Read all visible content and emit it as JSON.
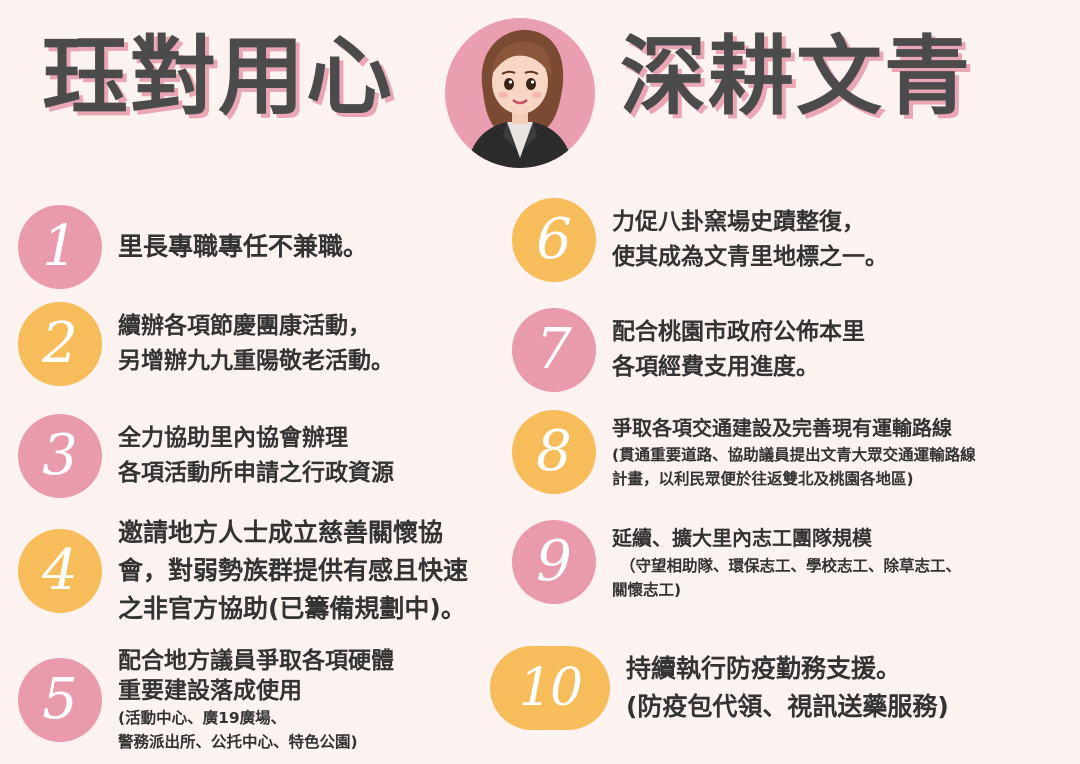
{
  "title": {
    "left": "珏對用心",
    "right": "深耕文青"
  },
  "colors": {
    "background": "#fcf2ef",
    "pink": "#e99aab",
    "orange": "#f8bd5b",
    "title": "#4b4b4b",
    "title_shadow": "#eaa6b4"
  },
  "items": [
    {
      "number": "1",
      "color": "pink",
      "lines": [
        "里長專職專任不兼職。"
      ]
    },
    {
      "number": "2",
      "color": "orange",
      "lines": [
        "續辦各項節慶團康活動，",
        "另增辦九九重陽敬老活動。"
      ]
    },
    {
      "number": "3",
      "color": "pink",
      "lines": [
        "全力協助里內協會辦理",
        "各項活動所申請之行政資源"
      ]
    },
    {
      "number": "4",
      "color": "orange",
      "lines": [
        "邀請地方人士成立慈善關懷協",
        "會，對弱勢族群提供有感且快速",
        "之非官方協助(已籌備規劃中)。"
      ]
    },
    {
      "number": "5",
      "color": "pink",
      "lines": [
        "配合地方議員爭取各項硬體",
        "重要建設落成使用"
      ],
      "notes": [
        "(活動中心、廣19廣場、",
        "警務派出所、公托中心、特色公園)"
      ]
    },
    {
      "number": "6",
      "color": "orange",
      "lines": [
        "力促八卦窯場史蹟整復，",
        "使其成為文青里地標之一。"
      ]
    },
    {
      "number": "7",
      "color": "pink",
      "lines": [
        "配合桃園市政府公佈本里",
        "各項經費支用進度。"
      ]
    },
    {
      "number": "8",
      "color": "orange",
      "lines": [
        "爭取各項交通建設及完善現有運輸路線"
      ],
      "notes": [
        "(貫通重要道路、協助議員提出文青大眾交通運輸路線",
        "計畫，以利民眾便於往返雙北及桃園各地區)"
      ]
    },
    {
      "number": "9",
      "color": "pink",
      "lines": [
        "延續、擴大里內志工團隊規模"
      ],
      "notes": [
        "（守望相助隊、環保志工、學校志工、除草志工、",
        "關懷志工)"
      ]
    },
    {
      "number": "10",
      "color": "orange",
      "lines": [
        "持續執行防疫勤務支援。",
        "(防疫包代領、視訊送藥服務)"
      ]
    }
  ]
}
